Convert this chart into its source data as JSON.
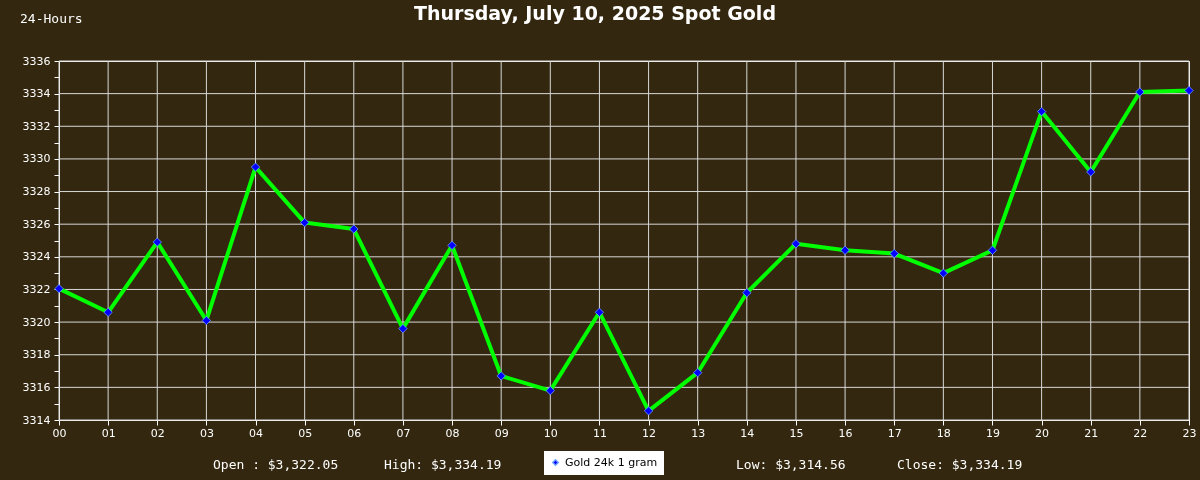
{
  "chart_data": {
    "type": "line",
    "title": "Thursday, July 10, 2025 Spot Gold",
    "annotations": [
      "24-Hours",
      "Open : $3,322.05",
      "High: $3,334.19",
      "Low: $3,314.56",
      "Close: $3,334.19"
    ],
    "categories": [
      "00",
      "01",
      "02",
      "03",
      "04",
      "05",
      "06",
      "07",
      "08",
      "09",
      "10",
      "11",
      "12",
      "13",
      "14",
      "15",
      "16",
      "17",
      "18",
      "19",
      "20",
      "21",
      "22",
      "23"
    ],
    "series": [
      {
        "name": "Gold 24k 1 gram",
        "color": "#00ff00",
        "colors": [
          "#0000ff",
          "#0000ff",
          "#0000ff",
          "#0000ff",
          "#0000ff",
          "#0000ff",
          "#0000ff",
          "#0000ff",
          "#0000ff",
          "#0000ff",
          "#0000ff",
          "#0000ff",
          "#0000ff",
          "#0000ff",
          "#0000ff",
          "#0000ff",
          "#0000ff",
          "#0000ff",
          "#0000ff",
          "#0000ff",
          "#0000ff",
          "#0000ff",
          "#0000ff",
          "#0000ff"
        ],
        "values": [
          3322.05,
          3320.6,
          3324.9,
          3320.1,
          3329.5,
          3326.1,
          3325.7,
          3319.6,
          3324.7,
          3316.7,
          3315.8,
          3320.6,
          3314.56,
          3316.9,
          3321.8,
          3324.8,
          3324.4,
          3324.2,
          3323.0,
          3324.4,
          3332.9,
          3329.2,
          3334.1,
          3334.19
        ]
      }
    ],
    "ylim": [
      3314,
      3336
    ],
    "yticks": [
      3314,
      {
        "value": 3315,
        "label": null
      },
      3316,
      {
        "value": 3317,
        "label": null
      },
      3318,
      {
        "value": 3319,
        "label": null
      },
      3320,
      {
        "value": 3321,
        "label": null
      },
      3322,
      {
        "value": 3323,
        "label": null
      },
      3324,
      {
        "value": 3325,
        "label": null
      },
      3326,
      {
        "value": 3327,
        "label": null
      },
      3328,
      {
        "value": 3329,
        "label": null
      },
      3330,
      {
        "value": 3331,
        "label": null
      },
      3332,
      {
        "value": 3333,
        "label": null
      },
      3334,
      {
        "value": 3335,
        "label": null
      },
      3336
    ],
    "grid": true,
    "legend": "bottom",
    "marker": "diamond",
    "line_style": "solid"
  }
}
